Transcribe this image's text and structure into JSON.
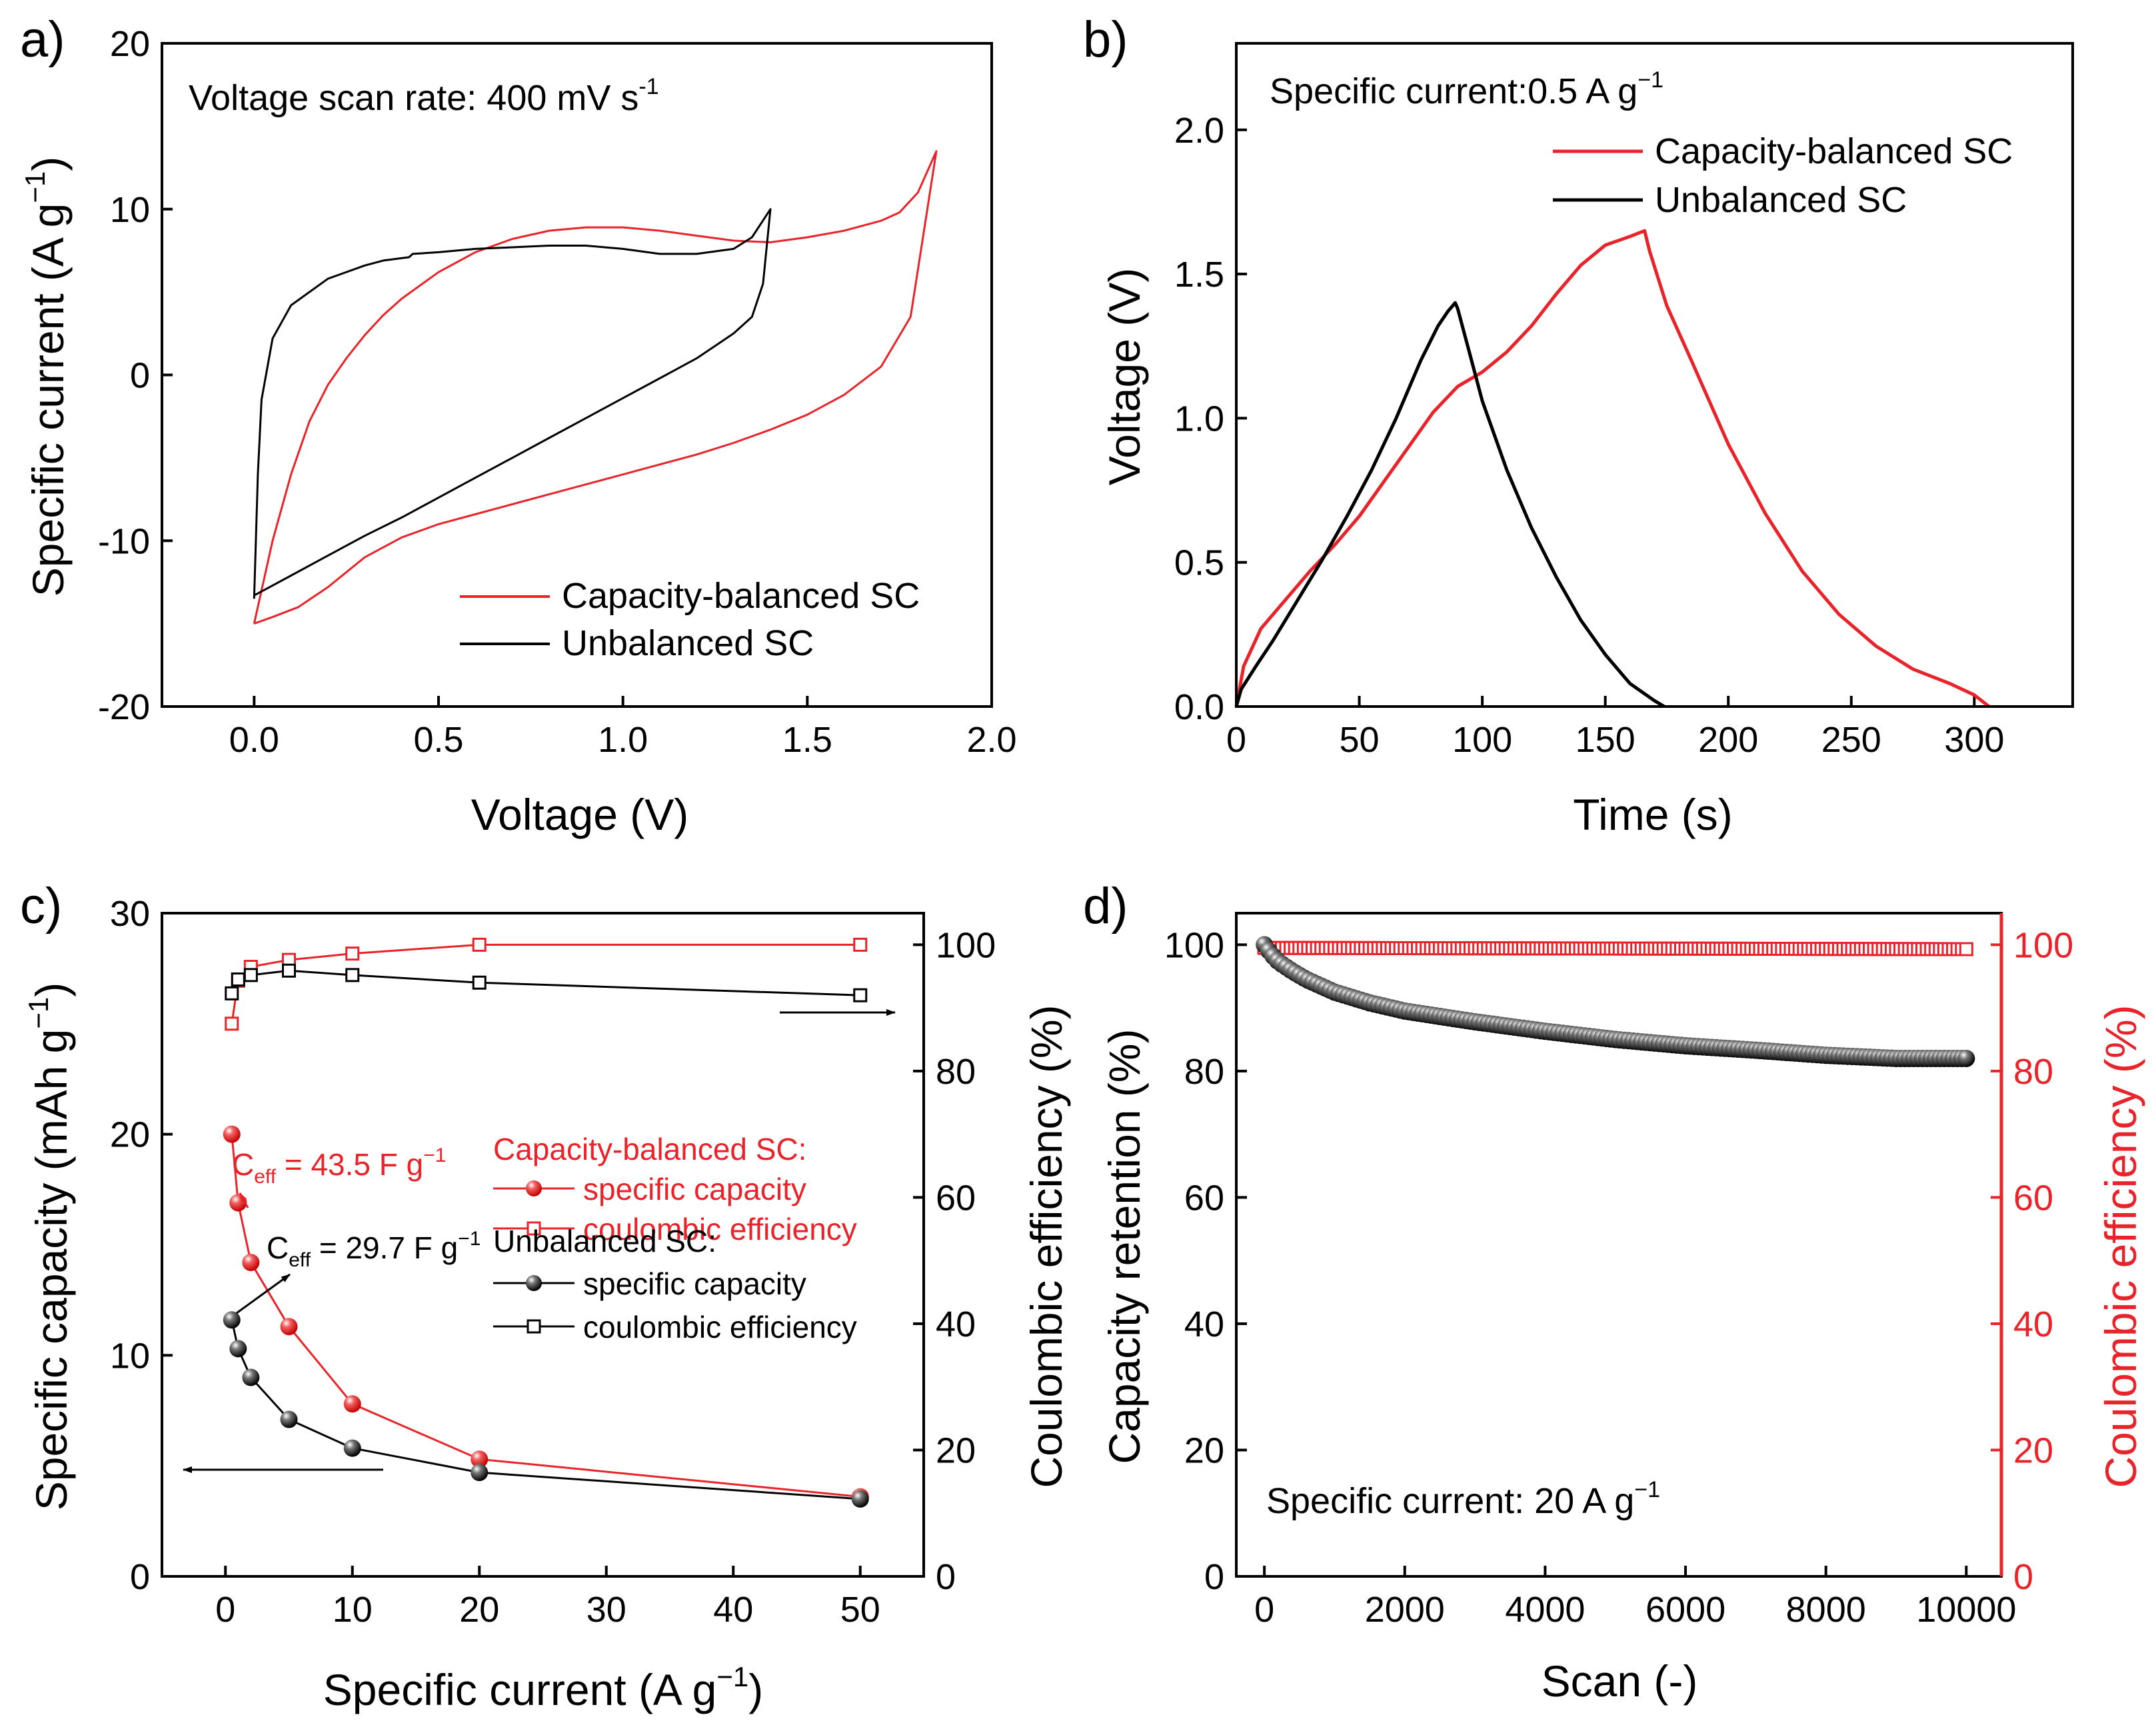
{
  "chart_data": [
    {
      "panel": "a)",
      "type": "line",
      "xlabel": "Voltage (V)",
      "ylabel": "Specific current (A g",
      "ylabel_sup": "−1",
      "ylabel_tail": ")",
      "xlim": [
        -0.25,
        2.0
      ],
      "ylim": [
        -20,
        20
      ],
      "xticks": [
        0.0,
        0.5,
        1.0,
        1.5,
        2.0
      ],
      "yticks": [
        -20,
        -10,
        0,
        10,
        20
      ],
      "annotation": {
        "text": "Voltage scan rate: 400 mV s",
        "sup": "-1"
      },
      "legend": {
        "position": "bottom-right",
        "entries": [
          "Capacity-balanced SC",
          "Unbalanced SC"
        ]
      },
      "series": [
        {
          "name": "Capacity-balanced SC",
          "color": "#e8232a",
          "x": [
            0.0,
            0.05,
            0.12,
            0.2,
            0.3,
            0.4,
            0.5,
            0.6,
            0.7,
            0.8,
            0.9,
            1.0,
            1.1,
            1.2,
            1.3,
            1.4,
            1.5,
            1.6,
            1.7,
            1.78,
            1.85,
            1.85,
            1.8,
            1.75,
            1.7,
            1.6,
            1.5,
            1.4,
            1.3,
            1.2,
            1.1,
            1.0,
            0.9,
            0.8,
            0.7,
            0.6,
            0.5,
            0.4,
            0.35,
            0.3,
            0.25,
            0.2,
            0.15,
            0.1,
            0.05,
            0.02,
            0.0
          ],
          "y": [
            -15.0,
            -14.6,
            -14.0,
            -12.8,
            -11.0,
            -9.8,
            -9.0,
            -8.4,
            -7.8,
            -7.2,
            -6.6,
            -6.0,
            -5.4,
            -4.8,
            -4.1,
            -3.3,
            -2.4,
            -1.2,
            0.5,
            3.5,
            13.5,
            13.5,
            11.0,
            9.8,
            9.3,
            8.7,
            8.3,
            8.0,
            8.1,
            8.4,
            8.7,
            8.9,
            8.9,
            8.7,
            8.2,
            7.4,
            6.2,
            4.6,
            3.6,
            2.4,
            1.0,
            -0.6,
            -2.8,
            -6.0,
            -10.0,
            -13.0,
            -15.0
          ]
        },
        {
          "name": "Unbalanced SC",
          "color": "#000000",
          "x": [
            0.0,
            0.05,
            0.1,
            0.2,
            0.3,
            0.4,
            0.5,
            0.6,
            0.7,
            0.8,
            0.9,
            1.0,
            1.1,
            1.2,
            1.3,
            1.35,
            1.38,
            1.4,
            1.4,
            1.35,
            1.3,
            1.2,
            1.1,
            1.0,
            0.9,
            0.8,
            0.7,
            0.6,
            0.5,
            0.43,
            0.42,
            0.35,
            0.3,
            0.2,
            0.1,
            0.05,
            0.02,
            0.01,
            0.0
          ],
          "y": [
            -13.3,
            -12.7,
            -12.1,
            -10.9,
            -9.7,
            -8.6,
            -7.4,
            -6.2,
            -5.0,
            -3.8,
            -2.6,
            -1.4,
            -0.2,
            1.0,
            2.5,
            3.5,
            5.5,
            10.0,
            10.0,
            8.3,
            7.6,
            7.3,
            7.3,
            7.6,
            7.8,
            7.8,
            7.7,
            7.6,
            7.4,
            7.3,
            7.1,
            6.9,
            6.6,
            5.8,
            4.2,
            2.2,
            -1.5,
            -6.0,
            -13.5
          ]
        }
      ]
    },
    {
      "panel": "b)",
      "type": "line",
      "xlabel": "Time (s)",
      "ylabel": "Voltage (V)",
      "xlim": [
        0,
        340
      ],
      "ylim": [
        0,
        2.3
      ],
      "xticks": [
        0,
        50,
        100,
        150,
        200,
        250,
        300
      ],
      "yticks": [
        0.0,
        0.5,
        1.0,
        1.5,
        2.0
      ],
      "annotation": {
        "text": "Specific current:0.5 A g",
        "sup": "−1"
      },
      "legend": {
        "position": "top-right",
        "entries": [
          "Capacity-balanced SC",
          "Unbalanced SC"
        ]
      },
      "series": [
        {
          "name": "Capacity-balanced SC",
          "color": "#e8232a",
          "x": [
            0,
            3,
            10,
            20,
            30,
            40,
            50,
            60,
            70,
            80,
            90,
            100,
            110,
            120,
            130,
            140,
            150,
            160,
            166,
            168,
            175,
            185,
            200,
            215,
            230,
            245,
            260,
            275,
            290,
            300,
            306
          ],
          "y": [
            0.0,
            0.14,
            0.27,
            0.37,
            0.47,
            0.56,
            0.66,
            0.78,
            0.9,
            1.02,
            1.11,
            1.16,
            1.23,
            1.32,
            1.43,
            1.53,
            1.6,
            1.63,
            1.65,
            1.58,
            1.39,
            1.2,
            0.91,
            0.67,
            0.47,
            0.32,
            0.21,
            0.13,
            0.08,
            0.04,
            0.0
          ]
        },
        {
          "name": "Unbalanced SC",
          "color": "#000000",
          "x": [
            0,
            2,
            8,
            15,
            25,
            35,
            45,
            55,
            65,
            75,
            82,
            86,
            89,
            90,
            95,
            100,
            110,
            120,
            130,
            140,
            150,
            160,
            170,
            174
          ],
          "y": [
            0.0,
            0.06,
            0.14,
            0.23,
            0.37,
            0.51,
            0.66,
            0.82,
            1.0,
            1.2,
            1.32,
            1.37,
            1.4,
            1.38,
            1.22,
            1.06,
            0.82,
            0.62,
            0.45,
            0.3,
            0.18,
            0.08,
            0.02,
            0.0
          ]
        }
      ]
    },
    {
      "panel": "c)",
      "type": "scatter-line",
      "xlabel": "Specific current (A g",
      "xlabel_sup": "−1",
      "xlabel_tail": ")",
      "ylabel": "Specific capacity (mAh g",
      "ylabel_sup": "−1",
      "ylabel_tail": ")",
      "y2label": "Coulombic efficiency (%)",
      "xlim": [
        -5,
        55
      ],
      "ylim": [
        0,
        30
      ],
      "y2lim": [
        0,
        105
      ],
      "xticks": [
        0,
        10,
        20,
        30,
        40,
        50
      ],
      "yticks": [
        0,
        10,
        20,
        30
      ],
      "y2ticks": [
        0,
        20,
        40,
        60,
        80,
        100
      ],
      "annotations": [
        {
          "name": "ceff-red",
          "main": "C",
          "sub": "eff",
          "rest": " = 43.5 F g",
          "sup": "−1",
          "color": "#e8232a"
        },
        {
          "name": "ceff-black",
          "main": "C",
          "sub": "eff",
          "rest": " = 29.7 F g",
          "sup": "−1",
          "color": "#000000"
        }
      ],
      "legend": {
        "position": "center-right",
        "groups": [
          {
            "title": "Capacity-balanced SC:",
            "color": "#e8232a",
            "entries": [
              "specific capacity",
              "coulombic efficiency"
            ]
          },
          {
            "title": "Unbalanced SC:",
            "color": "#000000",
            "entries": [
              "specific capacity",
              "coulombic efficiency"
            ]
          }
        ]
      },
      "x": [
        0.5,
        1,
        2,
        5,
        10,
        20,
        50
      ],
      "series": [
        {
          "name": "Capacity-balanced SC specific capacity",
          "axis": "left",
          "color": "#e8232a",
          "marker": "ball",
          "values": [
            20.0,
            16.9,
            14.2,
            11.3,
            7.8,
            5.3,
            3.6
          ]
        },
        {
          "name": "Capacity-balanced SC coulombic efficiency",
          "axis": "right",
          "color": "#e8232a",
          "marker": "open-square",
          "values": [
            87.5,
            94.3,
            96.5,
            97.6,
            98.6,
            100.0,
            100.0
          ]
        },
        {
          "name": "Unbalanced SC specific capacity",
          "axis": "left",
          "color": "#000000",
          "marker": "ball",
          "values": [
            11.6,
            10.3,
            9.0,
            7.1,
            5.8,
            4.7,
            3.5
          ]
        },
        {
          "name": "Unbalanced SC coulombic efficiency",
          "axis": "right",
          "color": "#000000",
          "marker": "open-square",
          "values": [
            92.3,
            94.5,
            95.2,
            95.9,
            95.2,
            94.0,
            92.0
          ]
        }
      ]
    },
    {
      "panel": "d)",
      "type": "scatter",
      "xlabel": "Scan (-)",
      "ylabel": "Capacity retention (%)",
      "y2label": "Coulombic efficiency (%)",
      "xlim": [
        -400,
        10500
      ],
      "ylim": [
        0,
        105
      ],
      "y2lim": [
        0,
        105
      ],
      "xticks": [
        0,
        2000,
        4000,
        6000,
        8000,
        10000
      ],
      "yticks": [
        0,
        20,
        40,
        60,
        80,
        100
      ],
      "y2ticks": [
        0,
        20,
        40,
        60,
        80,
        100
      ],
      "annotation": {
        "text": "Specific current: 20 A g",
        "sup": "−1"
      },
      "series": [
        {
          "name": "Capacity retention",
          "axis": "left",
          "color": "#000000",
          "marker": "ball",
          "x": [
            0,
            100,
            200,
            400,
            600,
            1000,
            1500,
            2000,
            3000,
            4000,
            5000,
            6000,
            7000,
            8000,
            9000,
            10000
          ],
          "y": [
            100.0,
            98.5,
            97.3,
            95.8,
            94.5,
            92.5,
            90.8,
            89.5,
            87.8,
            86.3,
            85.0,
            84.0,
            83.3,
            82.5,
            82.0,
            82.0
          ]
        },
        {
          "name": "Coulombic efficiency",
          "axis": "right",
          "color": "#e8232a",
          "marker": "open-square",
          "x": [
            0,
            10000
          ],
          "y": [
            99.5,
            99.3
          ]
        }
      ]
    }
  ]
}
